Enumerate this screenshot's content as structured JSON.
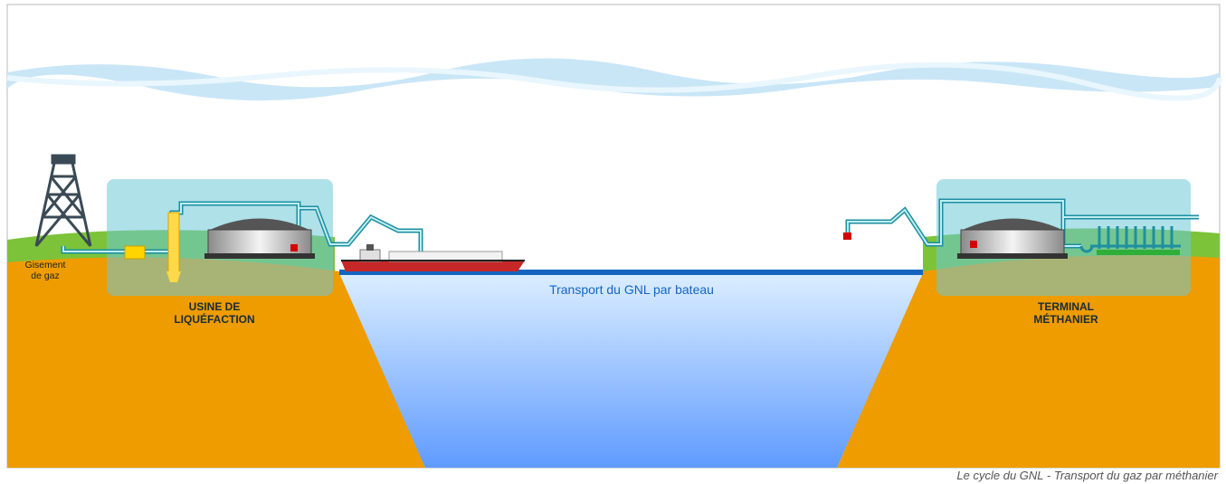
{
  "diagram": {
    "source_label": {
      "lines": [
        "Gisement",
        "de gaz"
      ]
    },
    "plant_label": {
      "lines": [
        "USINE DE",
        "LIQUÉFACTION"
      ]
    },
    "transport_label": "Transport du GNL par bateau",
    "terminal_label": {
      "lines": [
        "TERMINAL",
        "MÉTHANIER"
      ]
    }
  },
  "caption": "Le cycle du GNL - Transport du gaz par méthanier"
}
